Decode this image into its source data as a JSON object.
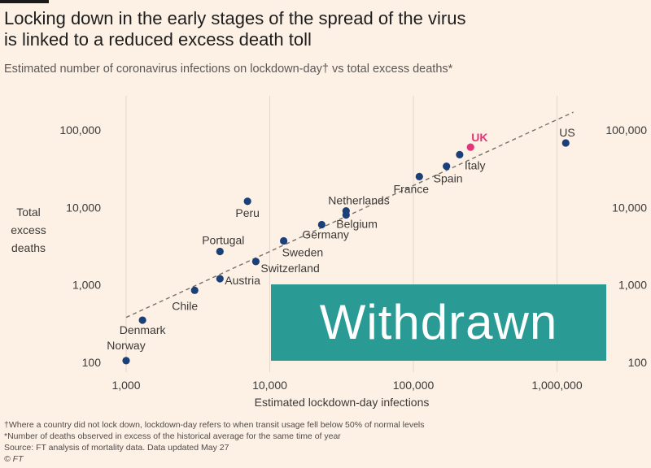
{
  "header": {
    "title_line1": "Locking down in the early stages of the spread of the virus",
    "title_line2": "is linked to a reduced excess death toll",
    "subtitle": "Estimated number of coronavirus infections on lockdown-day† vs total excess deaths*"
  },
  "chart_data": {
    "type": "scatter",
    "title": "Locking down in the early stages of the spread of the virus is linked to a reduced excess death toll",
    "xlabel": "Estimated lockdown-day infections",
    "ylabel": "Total excess deaths",
    "xscale": "log",
    "yscale": "log",
    "xlim": [
      600,
      2000000
    ],
    "ylim": [
      80,
      200000
    ],
    "x_ticks": [
      1000,
      10000,
      100000,
      1000000
    ],
    "x_tick_labels": [
      "1,000",
      "10,000",
      "100,000",
      "1,000,000"
    ],
    "y_ticks": [
      100,
      1000,
      10000,
      100000
    ],
    "y_tick_labels": [
      "100",
      "1,000",
      "10,000",
      "100,000"
    ],
    "grid": "vertical",
    "trendline": {
      "style": "dashed",
      "x": [
        1000,
        1300000
      ],
      "y": [
        380,
        170000
      ]
    },
    "points": [
      {
        "label": "Norway",
        "x": 1000,
        "y": 105,
        "highlight": false
      },
      {
        "label": "Denmark",
        "x": 1300,
        "y": 350,
        "highlight": false
      },
      {
        "label": "Chile",
        "x": 3000,
        "y": 850,
        "highlight": false
      },
      {
        "label": "Austria",
        "x": 4500,
        "y": 1200,
        "highlight": false
      },
      {
        "label": "Portugal",
        "x": 4500,
        "y": 2700,
        "highlight": false
      },
      {
        "label": "Switzerland",
        "x": 8000,
        "y": 2000,
        "highlight": false
      },
      {
        "label": "Peru",
        "x": 7000,
        "y": 12000,
        "highlight": false
      },
      {
        "label": "Sweden",
        "x": 12500,
        "y": 3700,
        "highlight": false
      },
      {
        "label": "Germany",
        "x": 23000,
        "y": 6000,
        "highlight": false
      },
      {
        "label": "Belgium",
        "x": 34000,
        "y": 8000,
        "highlight": false
      },
      {
        "label": "Netherlands",
        "x": 34000,
        "y": 9000,
        "highlight": false
      },
      {
        "label": "France",
        "x": 110000,
        "y": 25000,
        "highlight": false
      },
      {
        "label": "Spain",
        "x": 170000,
        "y": 34000,
        "highlight": false
      },
      {
        "label": "Italy",
        "x": 210000,
        "y": 48000,
        "highlight": false
      },
      {
        "label": "UK",
        "x": 250000,
        "y": 60000,
        "highlight": true
      },
      {
        "label": "US",
        "x": 1150000,
        "y": 68000,
        "highlight": false
      }
    ]
  },
  "colors": {
    "point": "#1b3f79",
    "highlight": "#e3357a",
    "grid": "#e2d7cc",
    "trend": "#777069"
  },
  "footnotes": {
    "dagger": "†Where a country did not lock down, lockdown-day refers to when transit usage fell below 50% of normal levels",
    "star": "*Number of deaths observed in excess of the historical average for the same time of year",
    "source": "Source: FT analysis of mortality data. Data updated May 27",
    "credit": "© FT"
  },
  "overlay": {
    "text": "Withdrawn"
  }
}
